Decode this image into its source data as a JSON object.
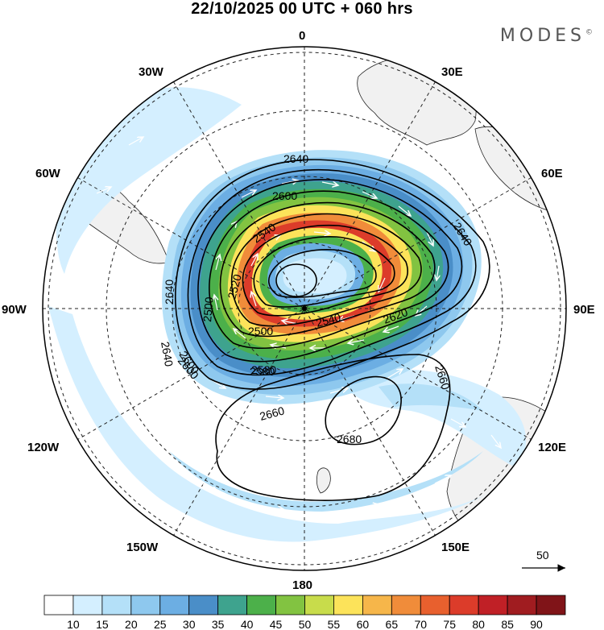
{
  "title": "22/10/2025  00 UTC  + 060 hrs",
  "brand": "MODES",
  "brand_mark": "©",
  "longitude_labels": {
    "n": "0",
    "e30": "30E",
    "e60": "60E",
    "e90": "90E",
    "e120": "120E",
    "e150": "150E",
    "s": "180",
    "w150": "150W",
    "w120": "120W",
    "w90": "90W",
    "w60": "60W",
    "w30": "30W"
  },
  "contour_labels": [
    "2640",
    "2600",
    "2540",
    "2520",
    "2500",
    "2580",
    "2600",
    "2640",
    "2640",
    "2500",
    "2540",
    "2620",
    "2580",
    "2600",
    "2660",
    "2660",
    "2680",
    "2640"
  ],
  "vector_reference": {
    "label": "50"
  },
  "colorbar": {
    "labels": [
      "10",
      "15",
      "20",
      "25",
      "30",
      "35",
      "40",
      "45",
      "50",
      "55",
      "60",
      "65",
      "70",
      "75",
      "80",
      "85",
      "90"
    ],
    "colors": [
      "#ffffff",
      "#d4efff",
      "#b4e0f8",
      "#8ec8ee",
      "#6caee3",
      "#4a8ec8",
      "#3ea38e",
      "#4cb04a",
      "#82c341",
      "#c8dc4b",
      "#fce35a",
      "#f6b64a",
      "#f08c3a",
      "#e8602e",
      "#dc3c2a",
      "#c02026",
      "#a01c20",
      "#801418"
    ]
  },
  "chart_data": {
    "type": "polar_stereographic_map",
    "title": "22/10/2025 00 UTC + 060 hrs",
    "fields": [
      "wind_speed_shaded",
      "geopotential_height_contours",
      "wind_vectors"
    ],
    "contour_levels": [
      2500,
      2520,
      2540,
      2580,
      2600,
      2620,
      2640,
      2660,
      2680
    ],
    "colorbar_range": [
      10,
      90
    ],
    "colorbar_interval": 5
  }
}
